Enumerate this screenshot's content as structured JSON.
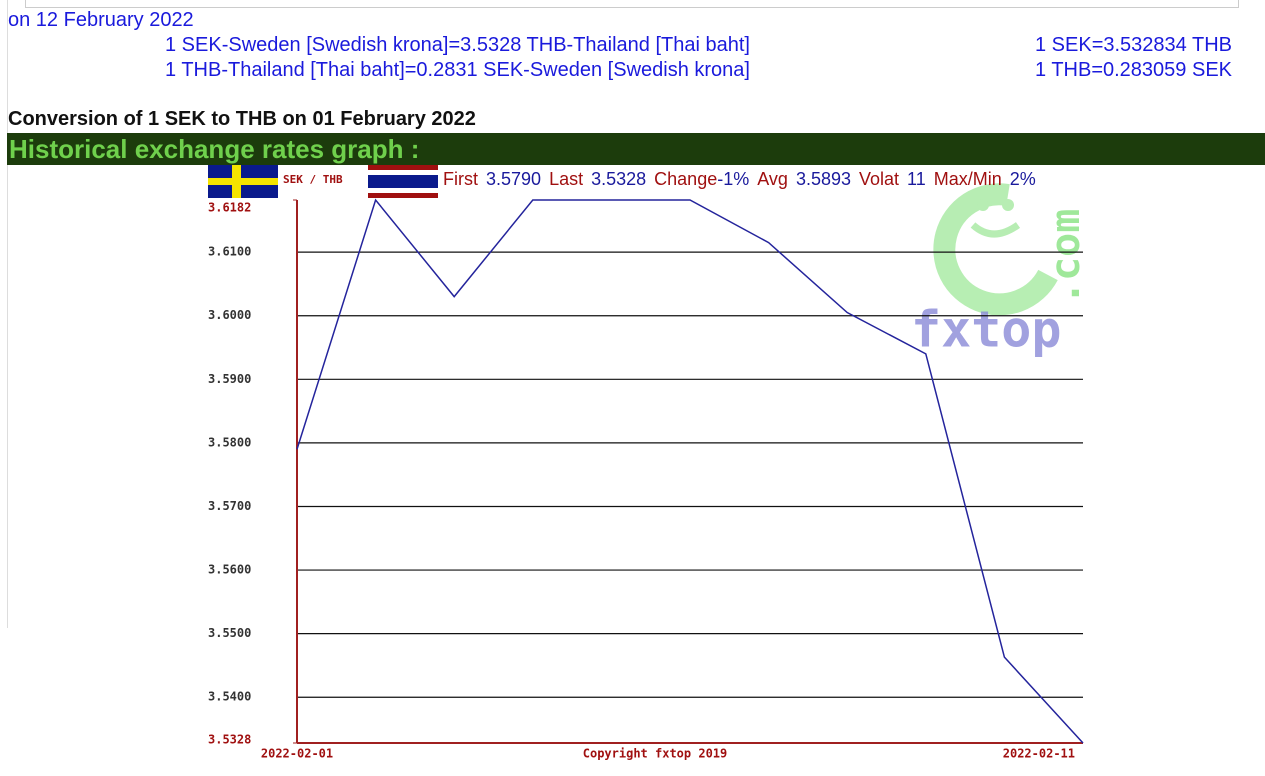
{
  "header": {
    "date_line": "on 12 February 2022",
    "rates": [
      {
        "text": "1 SEK-Sweden [Swedish krona]=3.5328 THB-Thailand [Thai baht]",
        "short": "1 SEK=3.532834 THB"
      },
      {
        "text": "1 THB-Thailand [Thai baht]=0.2831 SEK-Sweden [Swedish krona]",
        "short": "1 THB=0.283059 SEK"
      }
    ]
  },
  "conversion_title": "Conversion of 1 SEK to THB on 01 February 2022",
  "section_title": "Historical exchange rates graph :",
  "chart_data": {
    "type": "line",
    "pair": "SEK / THB",
    "stats": [
      {
        "label": "First",
        "value": "3.5790"
      },
      {
        "label": "Last",
        "value": "3.5328"
      },
      {
        "label": "Change",
        "value": "-1%"
      },
      {
        "label": "Avg",
        "value": "3.5893"
      },
      {
        "label": "Volat",
        "value": "11"
      },
      {
        "label": "Max/Min",
        "value": "2%"
      }
    ],
    "watermark": [
      "fxtop",
      ".com"
    ],
    "copyright": "Copyright fxtop 2019",
    "categories": [
      "2022-02-01",
      null,
      null,
      null,
      null,
      null,
      null,
      null,
      null,
      null,
      "2022-02-11"
    ],
    "values": [
      3.579,
      3.6182,
      3.603,
      3.6182,
      3.6182,
      3.6182,
      3.6115,
      3.6005,
      3.594,
      3.5463,
      3.5328
    ],
    "color": "#24249c",
    "ylim": [
      3.5328,
      3.6182
    ],
    "yticks": [
      3.5328,
      {
        "value": 3.54,
        "label": "3.5400"
      },
      {
        "value": 3.55,
        "label": "3.5500"
      },
      {
        "value": 3.56,
        "label": "3.5600"
      },
      {
        "value": 3.57,
        "label": "3.5700"
      },
      {
        "value": 3.58,
        "label": "3.5800"
      },
      {
        "value": 3.59,
        "label": "3.5900"
      },
      {
        "value": 3.6,
        "label": "3.6000"
      },
      {
        "value": 3.61,
        "label": "3.6100"
      },
      3.6182
    ],
    "grid": true
  }
}
